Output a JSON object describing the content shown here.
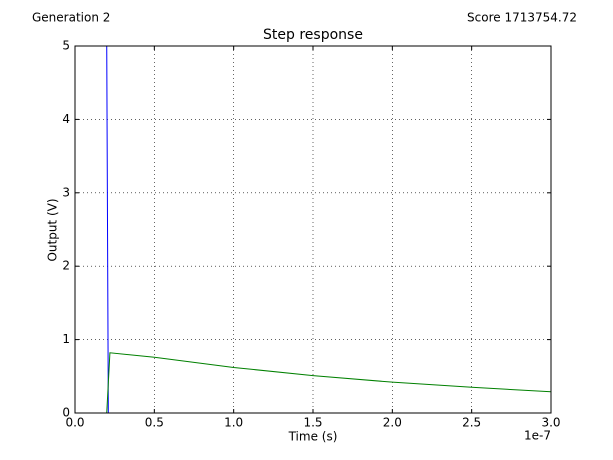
{
  "header": {
    "left": "Generation 2",
    "right": "Score 1713754.72"
  },
  "chart_data": {
    "type": "line",
    "title": "Step response",
    "x_label": "Time (s)",
    "y_label": "Output (V)",
    "x_offset_label": "1e-7",
    "series": [
      {
        "color": "#0000ff",
        "x": [
          0,
          0.2,
          0.21,
          3.0
        ],
        "values": [
          5,
          5,
          0,
          0
        ]
      },
      {
        "color": "#008000",
        "x": [
          0,
          0.2,
          0.22,
          0.5,
          1.0,
          1.5,
          2.0,
          2.5,
          3.0
        ],
        "values": [
          0,
          0,
          0.82,
          0.76,
          0.62,
          0.51,
          0.42,
          0.35,
          0.29
        ]
      }
    ],
    "xlim": [
      0,
      3.0
    ],
    "ylim": [
      0,
      5
    ],
    "xticks": [
      {
        "value": 0,
        "label": "0.0"
      },
      {
        "value": 0.5,
        "label": "0.5"
      },
      {
        "value": 1,
        "label": "1.0"
      },
      {
        "value": 1.5,
        "label": "1.5"
      },
      {
        "value": 2,
        "label": "2.0"
      },
      {
        "value": 2.5,
        "label": "2.5"
      },
      {
        "value": 3,
        "label": "3.0"
      }
    ],
    "yticks": [
      0,
      1,
      2,
      3,
      4,
      5
    ],
    "grid": true
  }
}
